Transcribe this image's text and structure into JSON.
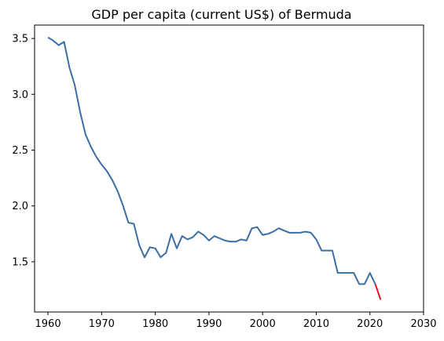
{
  "chart_data": {
    "type": "line",
    "title": "GDP per capita (current US$) of Bermuda",
    "xlabel": "",
    "ylabel": "",
    "xlim": [
      1957.5,
      2030
    ],
    "ylim": [
      1.05,
      3.62
    ],
    "x_ticks": [
      1960,
      1970,
      1980,
      1990,
      2000,
      2010,
      2020,
      2030
    ],
    "y_ticks": [
      1.5,
      2.0,
      2.5,
      3.0,
      3.5
    ],
    "x_tick_labels": [
      "1960",
      "1970",
      "1980",
      "1990",
      "2000",
      "2010",
      "2020",
      "2030"
    ],
    "y_tick_labels": [
      "1.5",
      "2.0",
      "2.5",
      "3.0",
      "3.5"
    ],
    "grid": false,
    "series": [
      {
        "color": "#3a6ea5",
        "x": [
          1960,
          1961,
          1962,
          1963,
          1964,
          1965,
          1966,
          1967,
          1968,
          1969,
          1970,
          1971,
          1972,
          1973,
          1974,
          1975,
          1976,
          1977,
          1978,
          1979,
          1980,
          1981,
          1982,
          1983,
          1984,
          1985,
          1986,
          1987,
          1988,
          1989,
          1990,
          1991,
          1992,
          1993,
          1994,
          1995,
          1996,
          1997,
          1998,
          1999,
          2000,
          2001,
          2002,
          2003,
          2004,
          2005,
          2006,
          2007,
          2008,
          2009,
          2010,
          2011,
          2012,
          2013,
          2014,
          2015,
          2016,
          2017,
          2018,
          2019,
          2020,
          2021
        ],
        "y": [
          3.51,
          3.48,
          3.44,
          3.47,
          3.24,
          3.08,
          2.84,
          2.64,
          2.53,
          2.44,
          2.37,
          2.31,
          2.23,
          2.13,
          2.0,
          1.85,
          1.84,
          1.65,
          1.54,
          1.63,
          1.62,
          1.54,
          1.58,
          1.75,
          1.62,
          1.73,
          1.7,
          1.72,
          1.77,
          1.74,
          1.69,
          1.73,
          1.71,
          1.69,
          1.68,
          1.68,
          1.7,
          1.69,
          1.8,
          1.81,
          1.74,
          1.75,
          1.77,
          1.8,
          1.78,
          1.76,
          1.76,
          1.76,
          1.77,
          1.76,
          1.7,
          1.6,
          1.6,
          1.6,
          1.4,
          1.4,
          1.4,
          1.4,
          1.3,
          1.3,
          1.4,
          1.3
        ]
      },
      {
        "color": "#e8141d",
        "x": [
          2021,
          2022
        ],
        "y": [
          1.3,
          1.16
        ]
      }
    ]
  }
}
